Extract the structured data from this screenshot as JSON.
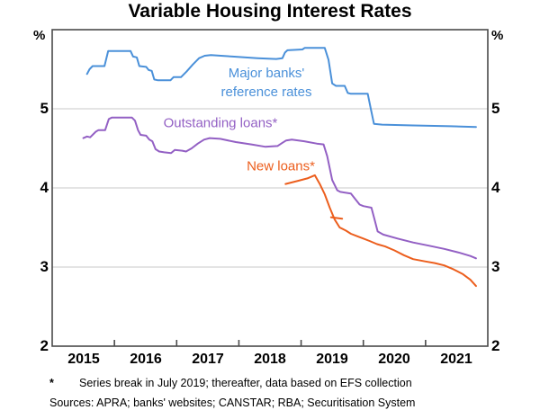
{
  "title": "Variable Housing Interest Rates",
  "axes": {
    "y_unit": "%",
    "y_tick_labels": [
      "5",
      "4",
      "3",
      "2"
    ],
    "x_tick_labels": [
      "2015",
      "2016",
      "2017",
      "2018",
      "2019",
      "2020",
      "2021"
    ]
  },
  "labels": {
    "blue_line1": "Major banks'",
    "blue_line2": "reference rates",
    "purple": "Outstanding loans*",
    "orange": "New loans*"
  },
  "footnote": {
    "marker": "*",
    "text": "Series break in July 2019; thereafter, data based on EFS collection"
  },
  "sources": "Sources: APRA; banks' websites; CANSTAR; RBA; Securitisation System",
  "colors": {
    "blue": "#4a90d9",
    "purple": "#9360c4",
    "orange": "#ec5e1d",
    "grid": "#c9c9c9",
    "frame": "#4a4a4a"
  },
  "chart_data": {
    "type": "line",
    "title": "Variable Housing Interest Rates",
    "xlabel": "",
    "ylabel": "%",
    "xlim": [
      2015,
      2022
    ],
    "ylim": [
      2,
      6
    ],
    "y_gridlines": [
      3,
      4,
      5
    ],
    "x_axis_tick_years": [
      2016,
      2017,
      2018,
      2019,
      2020,
      2021
    ],
    "x_label_years": [
      2015,
      2016,
      2017,
      2018,
      2019,
      2020,
      2021
    ],
    "legend_position": "inline-annotations",
    "grid": "horizontal-only",
    "series": [
      {
        "id": "major-banks-reference-rates",
        "name": "Major banks' reference rates",
        "color": "#4a90d9",
        "points": [
          [
            2015.56,
            5.44
          ],
          [
            2015.6,
            5.5
          ],
          [
            2015.65,
            5.54
          ],
          [
            2015.84,
            5.54
          ],
          [
            2015.9,
            5.73
          ],
          [
            2016.26,
            5.73
          ],
          [
            2016.3,
            5.66
          ],
          [
            2016.36,
            5.65
          ],
          [
            2016.4,
            5.54
          ],
          [
            2016.51,
            5.53
          ],
          [
            2016.55,
            5.49
          ],
          [
            2016.6,
            5.48
          ],
          [
            2016.64,
            5.37
          ],
          [
            2016.7,
            5.36
          ],
          [
            2016.9,
            5.36
          ],
          [
            2016.95,
            5.4
          ],
          [
            2017.07,
            5.4
          ],
          [
            2017.16,
            5.47
          ],
          [
            2017.26,
            5.56
          ],
          [
            2017.36,
            5.64
          ],
          [
            2017.45,
            5.67
          ],
          [
            2017.55,
            5.68
          ],
          [
            2017.9,
            5.66
          ],
          [
            2018.3,
            5.64
          ],
          [
            2018.6,
            5.63
          ],
          [
            2018.7,
            5.64
          ],
          [
            2018.74,
            5.71
          ],
          [
            2018.78,
            5.74
          ],
          [
            2019.02,
            5.75
          ],
          [
            2019.06,
            5.77
          ],
          [
            2019.38,
            5.77
          ],
          [
            2019.44,
            5.62
          ],
          [
            2019.5,
            5.32
          ],
          [
            2019.56,
            5.29
          ],
          [
            2019.7,
            5.29
          ],
          [
            2019.75,
            5.2
          ],
          [
            2019.8,
            5.19
          ],
          [
            2020.07,
            5.19
          ],
          [
            2020.12,
            5.0
          ],
          [
            2020.17,
            4.81
          ],
          [
            2020.3,
            4.8
          ],
          [
            2020.8,
            4.79
          ],
          [
            2021.4,
            4.78
          ],
          [
            2021.81,
            4.77
          ]
        ]
      },
      {
        "id": "outstanding-loans",
        "name": "Outstanding loans*",
        "color": "#9360c4",
        "points": [
          [
            2015.5,
            4.63
          ],
          [
            2015.56,
            4.65
          ],
          [
            2015.61,
            4.64
          ],
          [
            2015.7,
            4.71
          ],
          [
            2015.74,
            4.73
          ],
          [
            2015.85,
            4.73
          ],
          [
            2015.91,
            4.87
          ],
          [
            2015.96,
            4.89
          ],
          [
            2016.28,
            4.89
          ],
          [
            2016.33,
            4.85
          ],
          [
            2016.38,
            4.73
          ],
          [
            2016.42,
            4.67
          ],
          [
            2016.51,
            4.66
          ],
          [
            2016.56,
            4.61
          ],
          [
            2016.61,
            4.59
          ],
          [
            2016.66,
            4.49
          ],
          [
            2016.72,
            4.46
          ],
          [
            2016.8,
            4.45
          ],
          [
            2016.91,
            4.44
          ],
          [
            2016.97,
            4.48
          ],
          [
            2017.09,
            4.47
          ],
          [
            2017.15,
            4.46
          ],
          [
            2017.24,
            4.5
          ],
          [
            2017.34,
            4.56
          ],
          [
            2017.44,
            4.61
          ],
          [
            2017.53,
            4.63
          ],
          [
            2017.7,
            4.62
          ],
          [
            2017.95,
            4.58
          ],
          [
            2018.2,
            4.55
          ],
          [
            2018.42,
            4.52
          ],
          [
            2018.62,
            4.53
          ],
          [
            2018.7,
            4.57
          ],
          [
            2018.76,
            4.6
          ],
          [
            2018.85,
            4.61
          ],
          [
            2019.05,
            4.59
          ],
          [
            2019.25,
            4.56
          ],
          [
            2019.36,
            4.55
          ],
          [
            2019.42,
            4.4
          ],
          [
            2019.5,
            4.1
          ],
          [
            2019.58,
            3.97
          ],
          [
            2019.63,
            3.95
          ],
          [
            2019.8,
            3.93
          ],
          [
            2019.88,
            3.85
          ],
          [
            2019.94,
            3.79
          ],
          [
            2020.0,
            3.77
          ],
          [
            2020.13,
            3.75
          ],
          [
            2020.18,
            3.6
          ],
          [
            2020.23,
            3.45
          ],
          [
            2020.32,
            3.41
          ],
          [
            2020.55,
            3.36
          ],
          [
            2020.8,
            3.31
          ],
          [
            2021.05,
            3.27
          ],
          [
            2021.3,
            3.23
          ],
          [
            2021.55,
            3.18
          ],
          [
            2021.72,
            3.14
          ],
          [
            2021.81,
            3.11
          ]
        ]
      },
      {
        "id": "new-loans",
        "name": "New loans*",
        "color": "#ec5e1d",
        "points": [
          [
            2018.75,
            4.05
          ],
          [
            2018.95,
            4.09
          ],
          [
            2019.1,
            4.12
          ],
          [
            2019.22,
            4.16
          ],
          [
            2019.3,
            4.05
          ],
          [
            2019.38,
            3.92
          ],
          [
            2019.46,
            3.75
          ],
          [
            2019.54,
            3.6
          ],
          [
            2019.62,
            3.5
          ],
          [
            2019.72,
            3.46
          ],
          [
            2019.8,
            3.42
          ],
          [
            2019.9,
            3.39
          ],
          [
            2020.0,
            3.36
          ],
          [
            2020.1,
            3.33
          ],
          [
            2020.22,
            3.29
          ],
          [
            2020.35,
            3.26
          ],
          [
            2020.5,
            3.21
          ],
          [
            2020.65,
            3.15
          ],
          [
            2020.8,
            3.1
          ],
          [
            2021.0,
            3.07
          ],
          [
            2021.15,
            3.05
          ],
          [
            2021.3,
            3.02
          ],
          [
            2021.45,
            2.97
          ],
          [
            2021.6,
            2.91
          ],
          [
            2021.72,
            2.84
          ],
          [
            2021.81,
            2.76
          ]
        ],
        "break_marker": [
          [
            2019.48,
            3.63
          ],
          [
            2019.66,
            3.61
          ]
        ]
      }
    ]
  }
}
